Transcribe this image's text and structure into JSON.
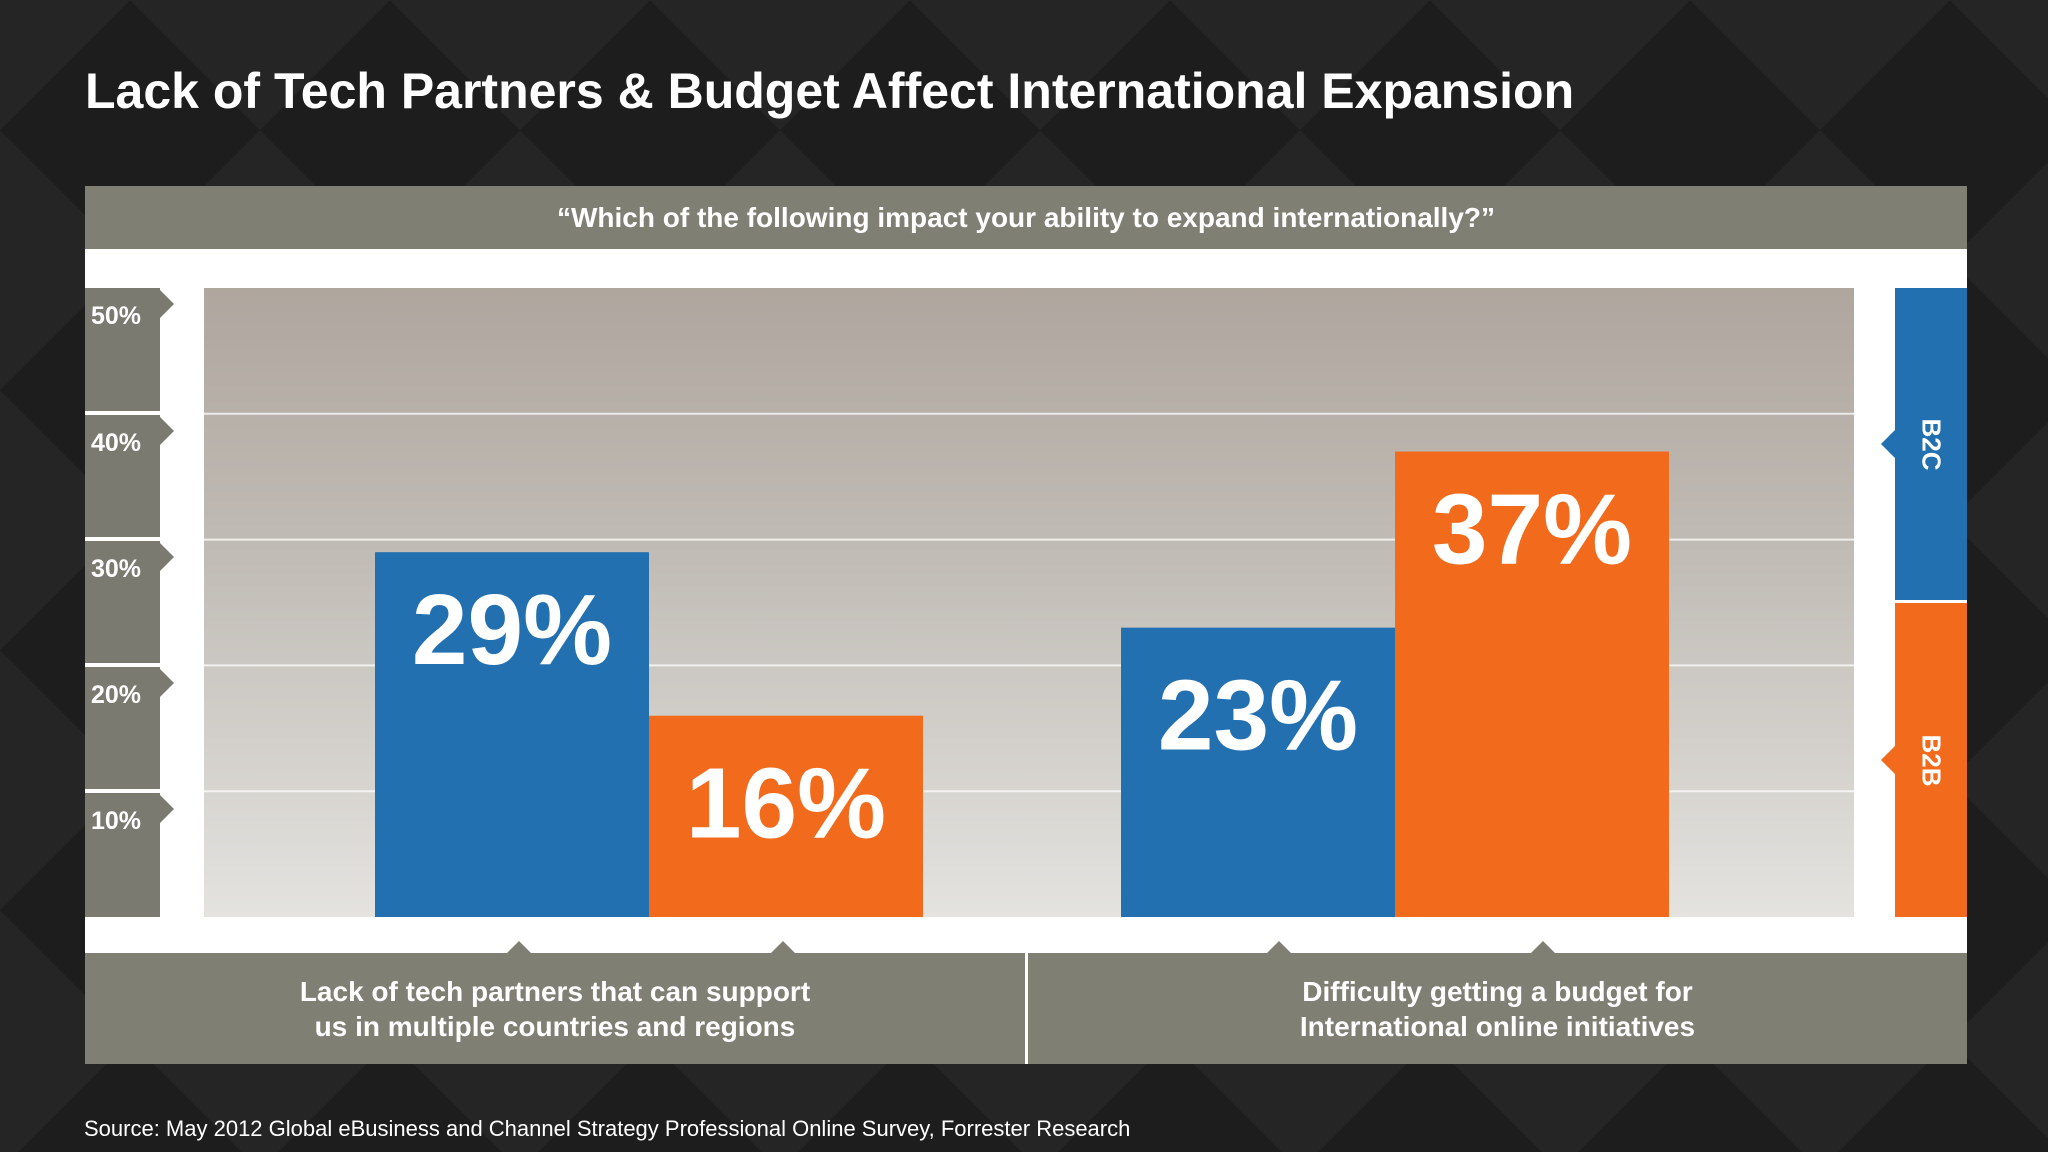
{
  "title": "Lack of Tech Partners & Budget Affect International Expansion",
  "source": "Source: May 2012 Global eBusiness and Channel Strategy Professional Online Survey, Forrester Research",
  "colors": {
    "b2c": "#2270b0",
    "b2b": "#f26a1b",
    "axis": "#7b7a71",
    "band": "#807f74"
  },
  "chart_data": {
    "type": "bar",
    "title": "“Which of the following impact your ability to expand internationally?”",
    "categories": [
      "Lack of tech partners that can support\nus in multiple countries and regions",
      "Difficulty getting a budget for\nInternational online initiatives"
    ],
    "series": [
      {
        "name": "B2C",
        "values": [
          29,
          23
        ],
        "labels": [
          "29%",
          "23%"
        ]
      },
      {
        "name": "B2B",
        "values": [
          16,
          37
        ],
        "labels": [
          "16%",
          "37%"
        ]
      }
    ],
    "ylim": [
      0,
      50
    ],
    "y_ticks": [
      10,
      20,
      30,
      40,
      50
    ],
    "y_tick_labels": [
      "10%",
      "20%",
      "30%",
      "40%",
      "50%"
    ],
    "grid": true,
    "legend_position": "right"
  }
}
